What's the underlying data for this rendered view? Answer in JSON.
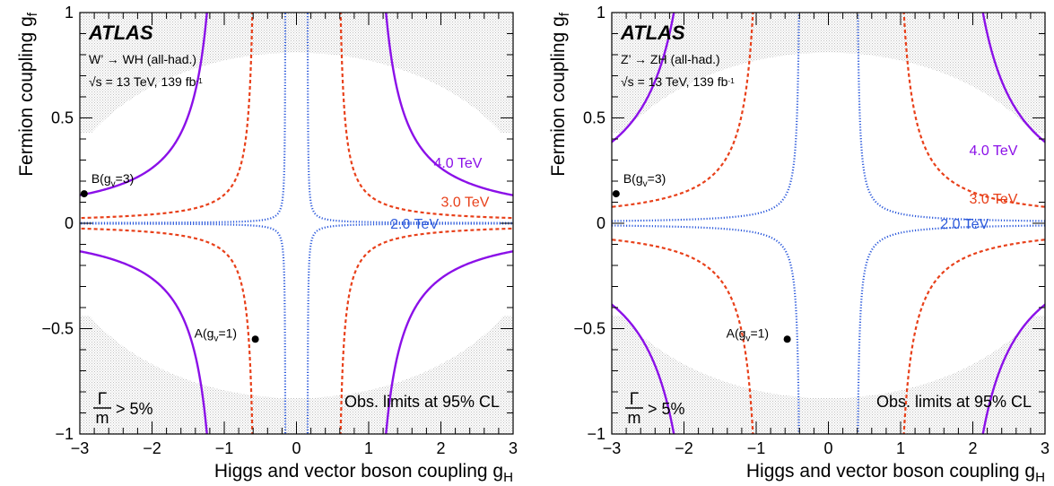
{
  "chart_data": [
    {
      "type": "line",
      "panel": "left",
      "experiment_label": "ATLAS",
      "process_label": "W’ → WH (all-had.)",
      "energy_label": "√s = 13 TeV, 139 fb",
      "energy_label_sup": "-1",
      "xlabel": "Higgs and vector boson coupling g",
      "xlabel_sub": "H",
      "ylabel": "Fermion coupling g",
      "ylabel_sub": "f",
      "xlim": [
        -3,
        3
      ],
      "ylim": [
        -1,
        1
      ],
      "x_ticks": [
        "−3",
        "−2",
        "−1",
        "0",
        "1",
        "2",
        "3"
      ],
      "y_ticks": [
        "−1",
        "−0.5",
        "0",
        "0.5",
        "1"
      ],
      "width_label_num": "Γ",
      "width_label_den": "m",
      "width_label_rest": "> 5%",
      "limits_label": "Obs. limits at 95% CL",
      "shading": "hatched region where Γ/m > 5%",
      "series": [
        {
          "name": "4.0 TeV",
          "color": "#8B10E8",
          "style": "solid",
          "k": 0.27,
          "x0": 0.97,
          "label_at": [
            1.9,
            0.29
          ]
        },
        {
          "name": "3.0 TeV",
          "color": "#E8401A",
          "style": "dashed",
          "k": 0.061,
          "x0": 0.55,
          "label_at": [
            2.0,
            0.105
          ]
        },
        {
          "name": "2.0 TeV",
          "color": "#2E5BDB",
          "style": "dotted",
          "k": 0.0049,
          "x0": 0.15,
          "label_at": [
            1.3,
            0.0
          ]
        }
      ],
      "points": [
        {
          "label": "B(g",
          "label_sub": "v",
          "label_rest": "=3)",
          "x": -2.94,
          "y": 0.14
        },
        {
          "label": "A(g",
          "label_sub": "v",
          "label_rest": "=1)",
          "x": -0.57,
          "y": -0.55
        }
      ]
    },
    {
      "type": "line",
      "panel": "right",
      "experiment_label": "ATLAS",
      "process_label": "Z’ → ZH (all-had.)",
      "energy_label": "√s = 13 TeV, 139 fb",
      "energy_label_sup": "-1",
      "xlabel": "Higgs and vector boson coupling g",
      "xlabel_sub": "H",
      "ylabel": "Fermion coupling g",
      "ylabel_sub": "f",
      "xlim": [
        -3,
        3
      ],
      "ylim": [
        -1,
        1
      ],
      "x_ticks": [
        "−3",
        "−2",
        "−1",
        "0",
        "1",
        "2",
        "3"
      ],
      "y_ticks": [
        "−1",
        "−0.5",
        "0",
        "0.5",
        "1"
      ],
      "width_label_num": "Γ",
      "width_label_den": "m",
      "width_label_rest": "> 5%",
      "limits_label": "Obs. limits at 95% CL",
      "shading": "hatched region where Γ/m > 5%",
      "series": [
        {
          "name": "4.0 TeV",
          "color": "#8B10E8",
          "style": "solid",
          "k": 0.54,
          "x0": 1.6,
          "label_at": [
            1.95,
            0.35
          ]
        },
        {
          "name": "3.0 TeV",
          "color": "#E8401A",
          "style": "dashed",
          "k": 0.165,
          "x0": 0.88,
          "label_at": [
            1.95,
            0.12
          ]
        },
        {
          "name": "2.0 TeV",
          "color": "#2E5BDB",
          "style": "dotted",
          "k": 0.028,
          "x0": 0.38,
          "label_at": [
            1.55,
            0.0
          ]
        }
      ],
      "points": [
        {
          "label": "B(g",
          "label_sub": "v",
          "label_rest": "=3)",
          "x": -2.94,
          "y": 0.14
        },
        {
          "label": "A(g",
          "label_sub": "v",
          "label_rest": "=1)",
          "x": -0.57,
          "y": -0.55
        }
      ]
    }
  ]
}
